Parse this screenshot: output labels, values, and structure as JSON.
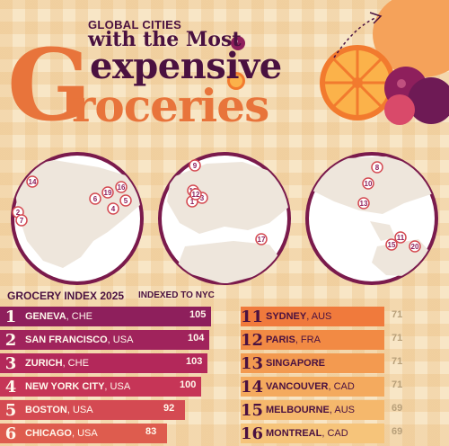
{
  "header": {
    "line1": "GLOBAL CITIES",
    "line2": "with the Most",
    "line3": "expensive",
    "line4": "roceries",
    "big_letter": "G"
  },
  "maps": {
    "americas": [
      {
        "n": "14"
      },
      {
        "n": "2"
      },
      {
        "n": "7"
      },
      {
        "n": "6"
      },
      {
        "n": "19"
      },
      {
        "n": "16"
      },
      {
        "n": "5"
      },
      {
        "n": "4"
      }
    ],
    "europe": [
      {
        "n": "9"
      },
      {
        "n": "18"
      },
      {
        "n": "1"
      },
      {
        "n": "3"
      },
      {
        "n": "12"
      },
      {
        "n": "17"
      }
    ],
    "asia": [
      {
        "n": "8"
      },
      {
        "n": "10"
      },
      {
        "n": "13"
      },
      {
        "n": "11"
      },
      {
        "n": "15"
      },
      {
        "n": "20"
      }
    ]
  },
  "index": {
    "label": "GROCERY INDEX 2025",
    "sublabel": "INDEXED TO NYC"
  },
  "chart_data": {
    "type": "bar",
    "title": "GROCERY INDEX 2025",
    "subtitle": "INDEXED TO NYC",
    "rows": [
      {
        "rank": "1",
        "city": "GENEVA",
        "country": ", CHE",
        "value": 105
      },
      {
        "rank": "2",
        "city": "SAN FRANCISCO",
        "country": ", USA",
        "value": 104
      },
      {
        "rank": "3",
        "city": "ZURICH",
        "country": ", CHE",
        "value": 103
      },
      {
        "rank": "4",
        "city": "NEW YORK CITY",
        "country": ", USA",
        "value": 100
      },
      {
        "rank": "5",
        "city": "BOSTON",
        "country": ", USA",
        "value": 92
      },
      {
        "rank": "6",
        "city": "CHICAGO",
        "country": ", USA",
        "value": 83
      },
      {
        "rank": "11",
        "city": "SYDNEY",
        "country": ", AUS",
        "value": 71
      },
      {
        "rank": "12",
        "city": "PARIS",
        "country": ", FRA",
        "value": 71
      },
      {
        "rank": "13",
        "city": "SINGAPORE",
        "country": "",
        "value": 71
      },
      {
        "rank": "14",
        "city": "VANCOUVER",
        "country": ", CAD",
        "value": 71
      },
      {
        "rank": "15",
        "city": "MELBOURNE",
        "country": ", AUS",
        "value": 69
      },
      {
        "rank": "16",
        "city": "MONTREAL",
        "country": ", CAD",
        "value": 69
      }
    ],
    "colors": {
      "left": [
        "#8e1f5c",
        "#a0235c",
        "#b3285a",
        "#c63557",
        "#d44a52",
        "#de5c4e"
      ],
      "right": [
        "#f07a3c",
        "#f28a44",
        "#f39a50",
        "#f4aa5e",
        "#f5b86c",
        "#f6c47a"
      ]
    }
  }
}
